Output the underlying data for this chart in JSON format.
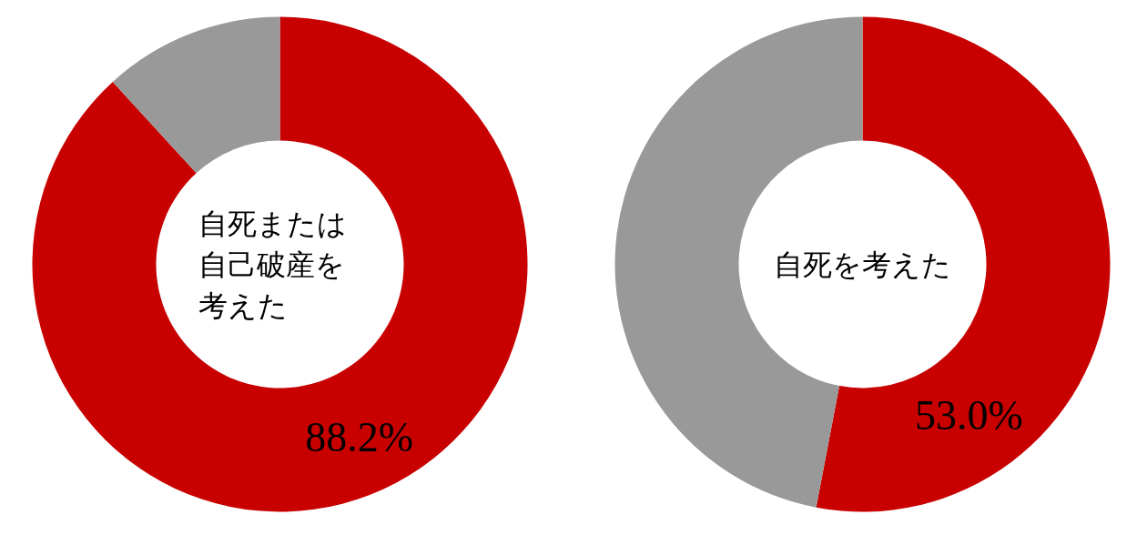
{
  "chart_data": [
    {
      "type": "donut",
      "title": "自死または自己破産を考えた",
      "categories": [
        null,
        null
      ],
      "values": [
        88.2,
        11.8
      ],
      "colors": [
        "#c80000",
        "#999999"
      ],
      "value_labels": [
        "88.2%",
        null
      ]
    },
    {
      "type": "donut",
      "title": "自死を考えた",
      "categories": [
        null,
        null
      ],
      "values": [
        53.0,
        47.0
      ],
      "colors": [
        "#c80000",
        "#999999"
      ],
      "value_labels": [
        "53.0%",
        null
      ]
    }
  ]
}
